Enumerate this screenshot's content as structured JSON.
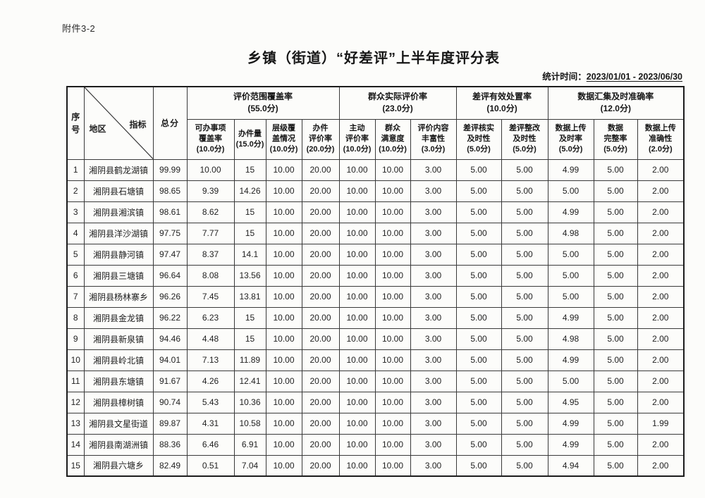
{
  "page": {
    "attachment_label": "附件3-2",
    "title": "乡镇（街道）“好差评”上半年度评分表",
    "stats_label": "统计时间：",
    "stats_value": "2023/01/01 - 2023/06/30"
  },
  "table": {
    "seq_header": "序\n号",
    "corner": {
      "region": "地区",
      "indicator": "指标"
    },
    "total_header": "总分",
    "groups": [
      {
        "label": "评价范围覆盖率",
        "score": "(55.0分)"
      },
      {
        "label": "群众实际评价率",
        "score": "(23.0分)"
      },
      {
        "label": "差评有效处置率",
        "score": "(10.0分)"
      },
      {
        "label": "数据汇集及时准确率",
        "score": "(12.0分)"
      }
    ],
    "sub_headers": [
      {
        "text": "可办事项\n覆盖率\n(10.0分)"
      },
      {
        "text": "办件量\n(15.0分)"
      },
      {
        "text": "层级覆\n盖情况\n(10.0分)"
      },
      {
        "text": "办件\n评价率\n(20.0分)"
      },
      {
        "text": "主动\n评价率\n(10.0分)"
      },
      {
        "text": "群众\n满意度\n(10.0分)"
      },
      {
        "text": "评价内容\n丰富性\n(3.0分)"
      },
      {
        "text": "差评核实\n及时性\n(5.0分)"
      },
      {
        "text": "差评整改\n及时性\n(5.0分)"
      },
      {
        "text": "数据上传\n及时率\n(5.0分)"
      },
      {
        "text": "数据\n完整率\n(5.0分)"
      },
      {
        "text": "数据上传\n准确性\n(2.0分)"
      }
    ],
    "rows": [
      {
        "seq": "1",
        "region": "湘阴县鹤龙湖镇",
        "values": [
          "99.99",
          "10.00",
          "15",
          "10.00",
          "20.00",
          "10.00",
          "10.00",
          "3.00",
          "5.00",
          "5.00",
          "4.99",
          "5.00",
          "2.00"
        ]
      },
      {
        "seq": "2",
        "region": "湘阴县石塘镇",
        "values": [
          "98.65",
          "9.39",
          "14.26",
          "10.00",
          "20.00",
          "10.00",
          "10.00",
          "3.00",
          "5.00",
          "5.00",
          "5.00",
          "5.00",
          "2.00"
        ]
      },
      {
        "seq": "3",
        "region": "湘阴县湘滨镇",
        "values": [
          "98.61",
          "8.62",
          "15",
          "10.00",
          "20.00",
          "10.00",
          "10.00",
          "3.00",
          "5.00",
          "5.00",
          "4.99",
          "5.00",
          "2.00"
        ]
      },
      {
        "seq": "4",
        "region": "湘阴县洋沙湖镇",
        "values": [
          "97.75",
          "7.77",
          "15",
          "10.00",
          "20.00",
          "10.00",
          "10.00",
          "3.00",
          "5.00",
          "5.00",
          "4.98",
          "5.00",
          "2.00"
        ]
      },
      {
        "seq": "5",
        "region": "湘阴县静河镇",
        "values": [
          "97.47",
          "8.37",
          "14.1",
          "10.00",
          "20.00",
          "10.00",
          "10.00",
          "3.00",
          "5.00",
          "5.00",
          "5.00",
          "5.00",
          "2.00"
        ]
      },
      {
        "seq": "6",
        "region": "湘阴县三塘镇",
        "values": [
          "96.64",
          "8.08",
          "13.56",
          "10.00",
          "20.00",
          "10.00",
          "10.00",
          "3.00",
          "5.00",
          "5.00",
          "5.00",
          "5.00",
          "2.00"
        ]
      },
      {
        "seq": "7",
        "region": "湘阴县杨林寨乡",
        "values": [
          "96.26",
          "7.45",
          "13.81",
          "10.00",
          "20.00",
          "10.00",
          "10.00",
          "3.00",
          "5.00",
          "5.00",
          "5.00",
          "5.00",
          "2.00"
        ]
      },
      {
        "seq": "8",
        "region": "湘阴县金龙镇",
        "values": [
          "96.22",
          "6.23",
          "15",
          "10.00",
          "20.00",
          "10.00",
          "10.00",
          "3.00",
          "5.00",
          "5.00",
          "4.99",
          "5.00",
          "2.00"
        ]
      },
      {
        "seq": "9",
        "region": "湘阴县新泉镇",
        "values": [
          "94.46",
          "4.48",
          "15",
          "10.00",
          "20.00",
          "10.00",
          "10.00",
          "3.00",
          "5.00",
          "5.00",
          "4.98",
          "5.00",
          "2.00"
        ]
      },
      {
        "seq": "10",
        "region": "湘阴县岭北镇",
        "values": [
          "94.01",
          "7.13",
          "11.89",
          "10.00",
          "20.00",
          "10.00",
          "10.00",
          "3.00",
          "5.00",
          "5.00",
          "4.99",
          "5.00",
          "2.00"
        ]
      },
      {
        "seq": "11",
        "region": "湘阴县东塘镇",
        "values": [
          "91.67",
          "4.26",
          "12.41",
          "10.00",
          "20.00",
          "10.00",
          "10.00",
          "3.00",
          "5.00",
          "5.00",
          "5.00",
          "5.00",
          "2.00"
        ]
      },
      {
        "seq": "12",
        "region": "湘阴县樟树镇",
        "values": [
          "90.74",
          "5.43",
          "10.36",
          "10.00",
          "20.00",
          "10.00",
          "10.00",
          "3.00",
          "5.00",
          "5.00",
          "4.95",
          "5.00",
          "2.00"
        ]
      },
      {
        "seq": "13",
        "region": "湘阴县文星街道",
        "values": [
          "89.87",
          "4.31",
          "10.58",
          "10.00",
          "20.00",
          "10.00",
          "10.00",
          "3.00",
          "5.00",
          "5.00",
          "4.99",
          "5.00",
          "1.99"
        ]
      },
      {
        "seq": "14",
        "region": "湘阴县南湖洲镇",
        "values": [
          "88.36",
          "6.46",
          "6.91",
          "10.00",
          "20.00",
          "10.00",
          "10.00",
          "3.00",
          "5.00",
          "5.00",
          "4.99",
          "5.00",
          "2.00"
        ]
      },
      {
        "seq": "15",
        "region": "湘阴县六塘乡",
        "values": [
          "82.49",
          "0.51",
          "7.04",
          "10.00",
          "20.00",
          "10.00",
          "10.00",
          "3.00",
          "5.00",
          "5.00",
          "4.94",
          "5.00",
          "2.00"
        ]
      }
    ]
  }
}
